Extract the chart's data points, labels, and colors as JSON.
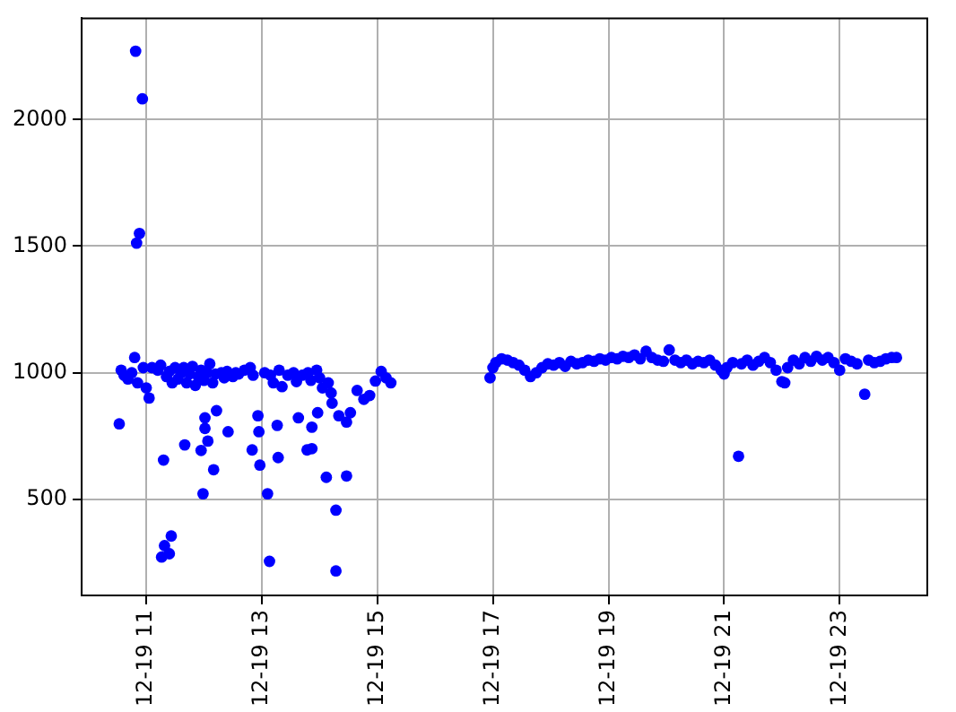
{
  "chart_data": {
    "type": "scatter",
    "marker": "circle",
    "grid": true,
    "legend": false,
    "xlim": [
      "--12-19T09:53",
      "--12-20T00:31"
    ],
    "ylim": [
      120,
      2400
    ],
    "xticks": [
      {
        "value": "--12-19T11:00",
        "label": "12-19 11"
      },
      {
        "value": "--12-19T13:00",
        "label": "12-19 13"
      },
      {
        "value": "--12-19T15:00",
        "label": "12-19 15"
      },
      {
        "value": "--12-19T17:00",
        "label": "12-19 17"
      },
      {
        "value": "--12-19T19:00",
        "label": "12-19 19"
      },
      {
        "value": "--12-19T21:00",
        "label": "12-19 21"
      },
      {
        "value": "--12-19T23:00",
        "label": "12-19 23"
      }
    ],
    "yticks": [
      500,
      1000,
      1500,
      2000
    ],
    "series": [
      {
        "color": "#0000ff",
        "x": [
          "--12-19T10:32",
          "--12-19T10:34",
          "--12-19T10:37",
          "--12-19T10:41",
          "--12-19T10:45",
          "--12-19T10:48",
          "--12-19T10:49",
          "--12-19T10:50",
          "--12-19T10:51",
          "--12-19T10:53",
          "--12-19T10:56",
          "--12-19T10:57",
          "--12-19T11:00",
          "--12-19T11:03",
          "--12-19T11:06",
          "--12-19T11:12",
          "--12-19T11:15",
          "--12-19T11:16",
          "--12-19T11:18",
          "--12-19T11:19",
          "--12-19T11:21",
          "--12-19T11:24",
          "--12-19T11:24",
          "--12-19T11:26",
          "--12-19T11:27",
          "--12-19T11:30",
          "--12-19T11:33",
          "--12-19T11:36",
          "--12-19T11:39",
          "--12-19T11:40",
          "--12-19T11:42",
          "--12-19T11:45",
          "--12-19T11:48",
          "--12-19T11:51",
          "--12-19T11:54",
          "--12-19T11:57",
          "--12-19T11:57",
          "--12-19T11:59",
          "--12-19T12:00",
          "--12-19T12:01",
          "--12-19T12:01",
          "--12-19T12:03",
          "--12-19T12:04",
          "--12-19T12:06",
          "--12-19T12:09",
          "--12-19T12:10",
          "--12-19T12:12",
          "--12-19T12:13",
          "--12-19T12:18",
          "--12-19T12:21",
          "--12-19T12:24",
          "--12-19T12:25",
          "--12-19T12:30",
          "--12-19T12:33",
          "--12-19T12:36",
          "--12-19T12:42",
          "--12-19T12:48",
          "--12-19T12:50",
          "--12-19T12:51",
          "--12-19T12:56",
          "--12-19T12:57",
          "--12-19T12:58",
          "--12-19T13:03",
          "--12-19T13:06",
          "--12-19T13:08",
          "--12-19T13:09",
          "--12-19T13:12",
          "--12-19T13:16",
          "--12-19T13:17",
          "--12-19T13:18",
          "--12-19T13:21",
          "--12-19T13:27",
          "--12-19T13:33",
          "--12-19T13:36",
          "--12-19T13:38",
          "--12-19T13:42",
          "--12-19T13:47",
          "--12-19T13:48",
          "--12-19T13:51",
          "--12-19T13:52",
          "--12-19T13:52",
          "--12-19T13:57",
          "--12-19T13:58",
          "--12-19T14:00",
          "--12-19T14:03",
          "--12-19T14:07",
          "--12-19T14:09",
          "--12-19T14:12",
          "--12-19T14:13",
          "--12-19T14:17",
          "--12-19T14:17",
          "--12-19T14:20",
          "--12-19T14:28",
          "--12-19T14:28",
          "--12-19T14:32",
          "--12-19T14:39",
          "--12-19T14:46",
          "--12-19T14:52",
          "--12-19T14:58",
          "--12-19T15:04",
          "--12-19T15:09",
          "--12-19T15:14",
          "--12-19T16:57",
          "--12-19T17:00",
          "--12-19T17:03",
          "--12-19T17:09",
          "--12-19T17:15",
          "--12-19T17:21",
          "--12-19T17:27",
          "--12-19T17:33",
          "--12-19T17:39",
          "--12-19T17:45",
          "--12-19T17:51",
          "--12-19T17:57",
          "--12-19T18:03",
          "--12-19T18:09",
          "--12-19T18:15",
          "--12-19T18:21",
          "--12-19T18:27",
          "--12-19T18:33",
          "--12-19T18:39",
          "--12-19T18:45",
          "--12-19T18:51",
          "--12-19T18:57",
          "--12-19T19:03",
          "--12-19T19:09",
          "--12-19T19:15",
          "--12-19T19:21",
          "--12-19T19:27",
          "--12-19T19:33",
          "--12-19T19:39",
          "--12-19T19:45",
          "--12-19T19:51",
          "--12-19T19:57",
          "--12-19T20:03",
          "--12-19T20:09",
          "--12-19T20:15",
          "--12-19T20:21",
          "--12-19T20:27",
          "--12-19T20:33",
          "--12-19T20:39",
          "--12-19T20:45",
          "--12-19T20:51",
          "--12-19T20:57",
          "--12-19T21:00",
          "--12-19T21:03",
          "--12-19T21:09",
          "--12-19T21:15",
          "--12-19T21:18",
          "--12-19T21:24",
          "--12-19T21:30",
          "--12-19T21:36",
          "--12-19T21:42",
          "--12-19T21:48",
          "--12-19T21:54",
          "--12-19T22:00",
          "--12-19T22:03",
          "--12-19T22:06",
          "--12-19T22:12",
          "--12-19T22:18",
          "--12-19T22:24",
          "--12-19T22:30",
          "--12-19T22:36",
          "--12-19T22:42",
          "--12-19T22:48",
          "--12-19T22:54",
          "--12-19T23:00",
          "--12-19T23:06",
          "--12-19T23:12",
          "--12-19T23:18",
          "--12-19T23:26",
          "--12-19T23:30",
          "--12-19T23:36",
          "--12-19T23:42",
          "--12-19T23:48",
          "--12-19T23:54",
          "--12-19T23:59"
        ],
        "values": [
          798,
          1010,
          990,
          975,
          1000,
          1060,
          2270,
          1512,
          960,
          1550,
          2082,
          1020,
          940,
          900,
          1020,
          1010,
          1030,
          272,
          655,
          317,
          985,
          1005,
          285,
          355,
          960,
          1020,
          975,
          1000,
          1020,
          715,
          960,
          995,
          1025,
          950,
          985,
          1010,
          693,
          522,
          970,
          822,
          780,
          1000,
          730,
          1035,
          960,
          617,
          995,
          850,
          1000,
          980,
          1005,
          767,
          985,
          1000,
          995,
          1010,
          1020,
          695,
          990,
          830,
          767,
          635,
          1000,
          522,
          255,
          990,
          960,
          792,
          665,
          1010,
          945,
          990,
          1000,
          965,
          822,
          990,
          695,
          1000,
          970,
          785,
          700,
          1010,
          842,
          980,
          940,
          587,
          960,
          920,
          880,
          457,
          217,
          830,
          805,
          592,
          842,
          930,
          895,
          910,
          967,
          1005,
          980,
          960,
          980,
          1020,
          1040,
          1055,
          1050,
          1040,
          1030,
          1010,
          985,
          1000,
          1020,
          1035,
          1030,
          1040,
          1025,
          1045,
          1035,
          1040,
          1050,
          1045,
          1055,
          1050,
          1060,
          1055,
          1065,
          1060,
          1070,
          1055,
          1085,
          1060,
          1050,
          1045,
          1090,
          1050,
          1040,
          1050,
          1035,
          1045,
          1040,
          1050,
          1030,
          1010,
          995,
          1020,
          1040,
          670,
          1035,
          1050,
          1030,
          1045,
          1060,
          1040,
          1010,
          965,
          960,
          1020,
          1050,
          1035,
          1060,
          1045,
          1065,
          1050,
          1060,
          1040,
          1010,
          1055,
          1045,
          1035,
          915,
          1050,
          1040,
          1045,
          1055,
          1060,
          1060
        ]
      }
    ]
  }
}
